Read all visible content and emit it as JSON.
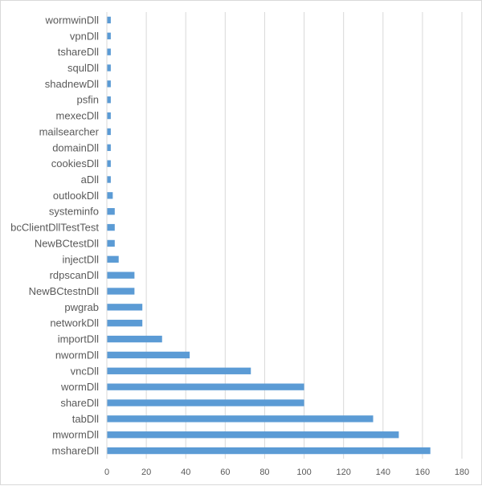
{
  "chart_data": {
    "type": "bar",
    "orientation": "horizontal",
    "categories": [
      "wormwinDll",
      "vpnDll",
      "tshareDll",
      "squlDll",
      "shadnewDll",
      "psfin",
      "mexecDll",
      "mailsearcher",
      "domainDll",
      "cookiesDll",
      "aDll",
      "outlookDll",
      "systeminfo",
      "bcClientDllTestTest",
      "NewBCtestDll",
      "injectDll",
      "rdpscanDll",
      "NewBCtestnDll",
      "pwgrab",
      "networkDll",
      "importDll",
      "nwormDll",
      "vncDll",
      "wormDll",
      "shareDll",
      "tabDll",
      "mwormDll",
      "mshareDll"
    ],
    "values": [
      2,
      2,
      2,
      2,
      2,
      2,
      2,
      2,
      2,
      2,
      2,
      3,
      4,
      4,
      4,
      6,
      14,
      14,
      18,
      18,
      28,
      42,
      73,
      100,
      100,
      135,
      148,
      164
    ],
    "xlim": [
      0,
      180
    ],
    "xticks": [
      "0",
      "20",
      "40",
      "60",
      "80",
      "100",
      "120",
      "140",
      "160",
      "180"
    ],
    "bar_color": "#5b9bd5",
    "grid": true,
    "title": "",
    "xlabel": "",
    "ylabel": ""
  }
}
